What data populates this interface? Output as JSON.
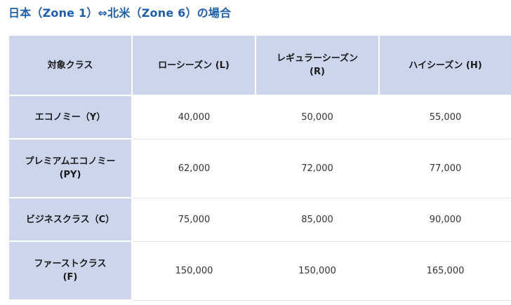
{
  "title": "日本（Zone 1）⇔北米（Zone 6）の場合",
  "table": {
    "headers": [
      "対象クラス",
      "ローシーズン (L)",
      "レギュラーシーズン\n(R)",
      "ハイシーズン (H)"
    ],
    "rows": [
      {
        "class": "エコノミー（Y）",
        "values": [
          "40,000",
          "50,000",
          "55,000"
        ]
      },
      {
        "class": "プレミアムエコノミー\n(PY)",
        "values": [
          "62,000",
          "72,000",
          "77,000"
        ]
      },
      {
        "class": "ビジネスクラス（C）",
        "values": [
          "75,000",
          "85,000",
          "90,000"
        ]
      },
      {
        "class": "ファーストクラス\n(F)",
        "values": [
          "150,000",
          "150,000",
          "165,000"
        ]
      }
    ]
  },
  "colors": {
    "title": "#1f5fa8",
    "header_bg": "#ccd5ec",
    "row_divider": "#e4e4e4"
  }
}
